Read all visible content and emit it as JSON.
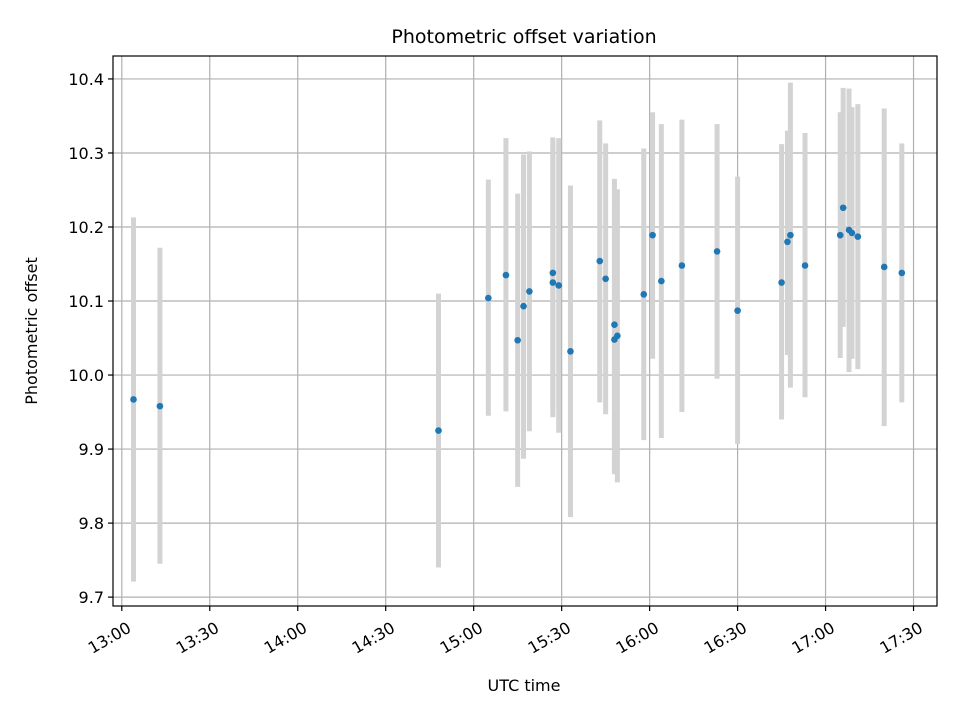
{
  "chart_data": {
    "type": "scatter",
    "title": "Photometric offset variation",
    "xlabel": "UTC time",
    "ylabel": "Photometric offset",
    "x_is_time": true,
    "xlim": [
      "12:57",
      "17:38"
    ],
    "ylim": [
      9.688,
      10.431
    ],
    "xticks": [
      "13:00",
      "13:30",
      "14:00",
      "14:30",
      "15:00",
      "15:30",
      "16:00",
      "16:30",
      "17:00",
      "17:30"
    ],
    "yticks": [
      9.7,
      9.8,
      9.9,
      10.0,
      10.1,
      10.2,
      10.3,
      10.4
    ],
    "ytick_labels": [
      "9.7",
      "9.8",
      "9.9",
      "10.0",
      "10.1",
      "10.2",
      "10.3",
      "10.4"
    ],
    "grid": true,
    "colors": {
      "marker": "#1f77b4",
      "errorbar": "#d3d3d3",
      "grid": "#b0b0b0"
    },
    "points": [
      {
        "x": "13:04",
        "y": 9.967,
        "ylo": 9.721,
        "yhi": 10.213
      },
      {
        "x": "13:13",
        "y": 9.958,
        "ylo": 9.745,
        "yhi": 10.172
      },
      {
        "x": "14:48",
        "y": 9.925,
        "ylo": 9.74,
        "yhi": 10.11
      },
      {
        "x": "15:05",
        "y": 10.104,
        "ylo": 9.945,
        "yhi": 10.264
      },
      {
        "x": "15:11",
        "y": 10.135,
        "ylo": 9.951,
        "yhi": 10.32
      },
      {
        "x": "15:15",
        "y": 10.047,
        "ylo": 9.849,
        "yhi": 10.245
      },
      {
        "x": "15:17",
        "y": 10.093,
        "ylo": 9.887,
        "yhi": 10.298
      },
      {
        "x": "15:19",
        "y": 10.113,
        "ylo": 9.924,
        "yhi": 10.302
      },
      {
        "x": "15:27",
        "y": 10.138,
        "ylo": 9.955,
        "yhi": 10.321
      },
      {
        "x": "15:27",
        "y": 10.125,
        "ylo": 9.943,
        "yhi": 10.309
      },
      {
        "x": "15:29",
        "y": 10.121,
        "ylo": 9.922,
        "yhi": 10.32
      },
      {
        "x": "15:33",
        "y": 10.032,
        "ylo": 9.808,
        "yhi": 10.256
      },
      {
        "x": "15:43",
        "y": 10.154,
        "ylo": 9.963,
        "yhi": 10.344
      },
      {
        "x": "15:45",
        "y": 10.13,
        "ylo": 9.947,
        "yhi": 10.313
      },
      {
        "x": "15:48",
        "y": 10.068,
        "ylo": 9.871,
        "yhi": 10.265
      },
      {
        "x": "15:48",
        "y": 10.048,
        "ylo": 9.866,
        "yhi": 10.23
      },
      {
        "x": "15:49",
        "y": 10.053,
        "ylo": 9.855,
        "yhi": 10.251
      },
      {
        "x": "15:58",
        "y": 10.109,
        "ylo": 9.912,
        "yhi": 10.306
      },
      {
        "x": "16:01",
        "y": 10.189,
        "ylo": 10.022,
        "yhi": 10.355
      },
      {
        "x": "16:04",
        "y": 10.127,
        "ylo": 9.915,
        "yhi": 10.339
      },
      {
        "x": "16:11",
        "y": 10.148,
        "ylo": 9.95,
        "yhi": 10.345
      },
      {
        "x": "16:23",
        "y": 10.167,
        "ylo": 9.995,
        "yhi": 10.339
      },
      {
        "x": "16:30",
        "y": 10.087,
        "ylo": 9.907,
        "yhi": 10.268
      },
      {
        "x": "16:45",
        "y": 10.125,
        "ylo": 9.94,
        "yhi": 10.312
      },
      {
        "x": "16:47",
        "y": 10.18,
        "ylo": 10.027,
        "yhi": 10.33
      },
      {
        "x": "16:48",
        "y": 10.189,
        "ylo": 9.983,
        "yhi": 10.395
      },
      {
        "x": "16:53",
        "y": 10.148,
        "ylo": 9.97,
        "yhi": 10.327
      },
      {
        "x": "17:05",
        "y": 10.189,
        "ylo": 10.023,
        "yhi": 10.355
      },
      {
        "x": "17:06",
        "y": 10.226,
        "ylo": 10.065,
        "yhi": 10.388
      },
      {
        "x": "17:08",
        "y": 10.196,
        "ylo": 10.004,
        "yhi": 10.387
      },
      {
        "x": "17:09",
        "y": 10.192,
        "ylo": 10.022,
        "yhi": 10.362
      },
      {
        "x": "17:11",
        "y": 10.187,
        "ylo": 10.008,
        "yhi": 10.366
      },
      {
        "x": "17:20",
        "y": 10.146,
        "ylo": 9.931,
        "yhi": 10.36
      },
      {
        "x": "17:26",
        "y": 10.138,
        "ylo": 9.963,
        "yhi": 10.313
      }
    ]
  }
}
